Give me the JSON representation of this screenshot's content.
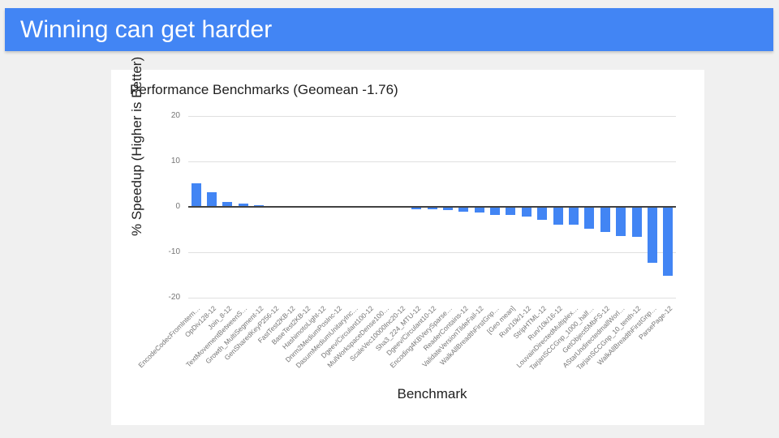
{
  "header": {
    "title": "Winning can get harder"
  },
  "chart": {
    "title": "Performance Benchmarks (Geomean -1.76)",
    "y_axis": {
      "title": "% Speedup (Higher is Better)",
      "ticks": [
        20,
        10,
        0,
        -10,
        -20
      ],
      "min": -20,
      "max": 20
    },
    "x_axis": {
      "title": "Benchmark"
    },
    "chart_data": {
      "type": "bar",
      "title": "Performance Benchmarks (Geomean -1.76)",
      "xlabel": "Benchmark",
      "ylabel": "% Speedup (Higher is Better)",
      "ylim": [
        -20,
        20
      ],
      "grid": true,
      "legend": false,
      "bar_color": "#4285f4",
      "categories": [
        "EncodeCodecFromIntern…",
        "OpDiv128-12",
        "Join_8-12",
        "TextMovementBetweenS…",
        "Growth_MultiSegment-12",
        "GenSharedKeyP256-12",
        "FastTest2KB-12",
        "BaseTest2KB-12",
        "HashimotoLight-12",
        "Dnrm2MediumPosInc-12",
        "DasumMediumUnitaryInc…",
        "Dgeev/Circulant100-12",
        "MulWorkspaceDense100…",
        "ScaleVec10000Inc20-12",
        "Sha3_224_MTU-12",
        "Dgeev/Circulant10-12",
        "Encoding4KBVerySparse…",
        "ReaderContains-12",
        "ValidateVersionTildeFail-12",
        "WalkAllBreadthFirstGnp…",
        "[Geo mean]",
        "Run/10k/1-12",
        "StripHTML-12",
        "Run/10k/16-12",
        "LouvainDirectedMultiplex…",
        "TarjanSCCGnp_1000_half…",
        "GetObject5MbFS-12",
        "AStarUndirectedmallWorl…",
        "TarjanSCCGnp_10_tenth-12",
        "WalkAllBreadthFirstGnp…",
        "ParsePage-12"
      ],
      "values": [
        5.1,
        3.3,
        1.1,
        0.75,
        0.4,
        0.15,
        -0.02,
        -0.03,
        -0.04,
        -0.05,
        -0.06,
        -0.07,
        -0.08,
        -0.1,
        -0.45,
        -0.45,
        -0.75,
        -1.1,
        -1.3,
        -1.7,
        -1.76,
        -2.2,
        -2.9,
        -3.9,
        -4.0,
        -4.8,
        -5.6,
        -6.4,
        -6.6,
        -12.4,
        -15.2
      ]
    }
  },
  "colors": {
    "header_bg": "#4285f4",
    "page_bg": "#f0f0f0",
    "card_bg": "#ffffff",
    "bar": "#4285f4",
    "gridline": "#e0e0e0",
    "zero_axis": "#424242",
    "tick_text": "#757575",
    "title_text": "#212121"
  }
}
